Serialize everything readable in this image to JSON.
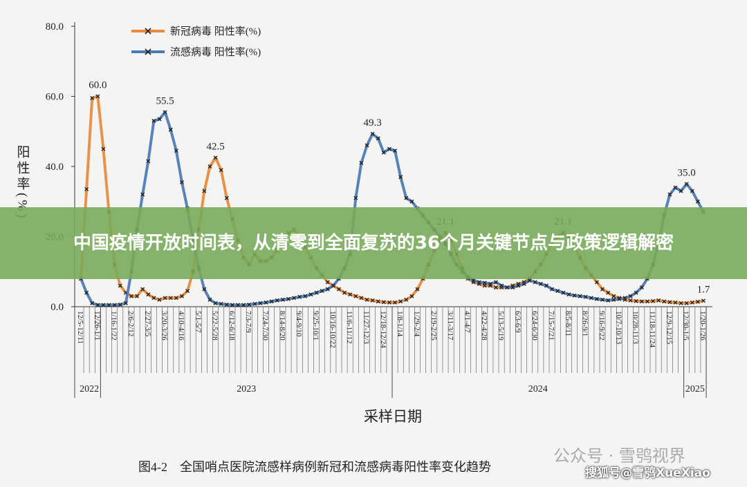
{
  "chart_data": {
    "type": "line",
    "caption": "图4-2　全国哨点医院流感样病例新冠和流感病毒阳性率变化趋势",
    "y_label": "阳性率(%)",
    "x_label": "采样日期",
    "years": [
      "2022",
      "2023",
      "2024",
      "2025"
    ],
    "ylim": [
      0,
      80
    ],
    "yticks": [
      {
        "value": 0,
        "label": "0.0"
      },
      {
        "value": 20,
        "label": "20.0"
      },
      {
        "value": 40,
        "label": "40.0"
      },
      {
        "value": 60,
        "label": "60.0"
      },
      {
        "value": 80,
        "label": "80.0"
      }
    ],
    "categories": [
      "12/5-12/11",
      null,
      null,
      "12/26-1/1",
      null,
      null,
      "1/16-1/22",
      null,
      null,
      "2/6-2/12",
      null,
      null,
      "2/27-3/5",
      null,
      null,
      "3/20-3/26",
      null,
      null,
      "4/10-4/16",
      null,
      null,
      "5/1-5/7",
      null,
      null,
      "5/22-5/28",
      null,
      null,
      "6/12-6/18",
      null,
      null,
      "7/3-7/9",
      null,
      null,
      "7/24-7/30",
      null,
      null,
      "8/14-8/20",
      null,
      null,
      "9/4-9/10",
      null,
      null,
      "9/25-10/1",
      null,
      null,
      "10/16-10/22",
      null,
      null,
      "11/6-11/12",
      null,
      null,
      "11/27-12/3",
      null,
      null,
      "12/18-12/24",
      null,
      null,
      "1/8-1/14",
      null,
      null,
      "1/29-2/4",
      null,
      null,
      "2/19-2/25",
      null,
      null,
      "3/11-3/17",
      null,
      null,
      "4/1-4/7",
      null,
      null,
      "4/22-4/28",
      null,
      null,
      "5/13-5/19",
      null,
      null,
      "6/3-6/9",
      null,
      null,
      "6/24-6/30",
      null,
      null,
      "7/15-7/21",
      null,
      null,
      "8/5-8/11",
      null,
      null,
      "8/26-9/1",
      null,
      null,
      "9/16-9/22",
      null,
      null,
      "10/7-10/13",
      null,
      null,
      "10/28-11/3",
      null,
      null,
      "11/18-11/24",
      null,
      null,
      "12/9-12/15",
      null,
      null,
      "12/30-1/5",
      null,
      null,
      "1/20-1/26"
    ],
    "series": [
      {
        "name": "新冠病毒 阳性率(%)",
        "color": "#e8883a",
        "values": [
          8,
          33.5,
          59.5,
          60,
          45,
          27,
          12,
          6,
          4,
          3,
          3,
          5,
          3.5,
          2.5,
          2,
          2.5,
          2.5,
          2.5,
          3,
          4.5,
          10,
          22,
          33,
          40,
          42.5,
          39,
          31,
          25,
          19,
          14,
          12,
          15,
          13,
          13,
          14,
          16,
          19,
          21,
          22,
          20,
          17,
          14,
          11,
          9,
          7,
          6,
          5,
          4,
          3.5,
          3,
          2.5,
          2,
          1.8,
          1.5,
          1.3,
          1.2,
          1.2,
          1.5,
          2,
          3,
          5,
          8,
          12,
          16,
          19,
          21.1,
          19,
          15,
          11,
          8,
          7,
          6.5,
          6,
          6,
          5.5,
          5.5,
          5.5,
          6,
          6.5,
          7,
          8,
          10,
          12,
          15,
          18,
          20,
          21.1,
          20,
          17,
          14,
          11,
          9,
          7,
          5,
          4,
          3,
          2.5,
          2,
          1.8,
          1.6,
          1.5,
          1.5,
          1.6,
          1.8,
          1.5,
          1.3,
          1.2,
          1,
          1,
          1.2,
          1.4,
          1.7
        ],
        "value_labels": [
          null,
          null,
          null,
          "60.0",
          null,
          null,
          null,
          null,
          null,
          null,
          null,
          null,
          null,
          null,
          null,
          null,
          null,
          null,
          null,
          null,
          null,
          null,
          null,
          null,
          "42.5",
          null,
          null,
          null,
          null,
          null,
          null,
          null,
          null,
          null,
          null,
          null,
          null,
          null,
          null,
          null,
          null,
          null,
          null,
          null,
          null,
          null,
          null,
          null,
          null,
          null,
          null,
          null,
          null,
          null,
          null,
          null,
          null,
          null,
          null,
          null,
          null,
          null,
          null,
          null,
          null,
          "21.1",
          null,
          null,
          null,
          null,
          null,
          null,
          null,
          null,
          null,
          null,
          null,
          null,
          null,
          null,
          null,
          null,
          null,
          null,
          null,
          null,
          "21.1",
          null,
          null,
          null,
          null,
          null,
          null,
          null,
          null,
          null,
          null,
          null,
          null,
          null,
          null,
          null,
          null,
          null,
          null,
          null,
          null,
          null,
          null,
          null,
          null,
          "1.7"
        ]
      },
      {
        "name": "流感病毒 阳性率(%)",
        "color": "#4a78b5",
        "values": [
          8,
          4,
          1,
          0.5,
          0.5,
          0.5,
          0.5,
          0.6,
          1,
          10,
          22,
          32,
          41.5,
          53,
          53.5,
          55.5,
          50.5,
          44.5,
          35.5,
          28,
          19,
          11,
          5,
          2,
          1,
          0.8,
          0.6,
          0.5,
          0.5,
          0.5,
          0.6,
          0.8,
          1,
          1.2,
          1.5,
          1.8,
          2,
          2.2,
          2.5,
          2.8,
          3,
          3.5,
          4,
          4.5,
          5,
          6,
          8,
          11,
          15,
          31,
          41,
          46,
          49.3,
          48,
          44,
          45,
          44.5,
          37,
          31,
          30,
          28,
          26,
          24,
          22,
          20,
          18,
          15,
          12,
          10,
          8.5,
          7.5,
          7,
          6.8,
          6.5,
          7,
          6,
          5.5,
          5.5,
          6,
          6.5,
          7.5,
          7,
          6.5,
          6,
          5,
          4.5,
          4,
          3.5,
          3.2,
          3,
          2.8,
          2.5,
          2.2,
          2,
          1.8,
          2,
          2.2,
          2.5,
          3,
          4,
          5.5,
          8,
          12,
          18,
          26,
          32,
          34,
          33,
          35,
          33,
          30,
          27
        ],
        "value_labels": [
          null,
          null,
          null,
          null,
          null,
          null,
          null,
          null,
          null,
          null,
          null,
          null,
          null,
          null,
          null,
          "55.5",
          null,
          null,
          null,
          null,
          null,
          null,
          null,
          null,
          null,
          null,
          null,
          null,
          null,
          null,
          null,
          null,
          null,
          null,
          null,
          null,
          null,
          null,
          null,
          null,
          null,
          null,
          null,
          null,
          null,
          null,
          null,
          null,
          null,
          null,
          null,
          null,
          "49.3",
          null,
          null,
          null,
          null,
          null,
          null,
          null,
          null,
          null,
          null,
          null,
          null,
          null,
          null,
          null,
          null,
          null,
          null,
          null,
          null,
          null,
          null,
          null,
          null,
          null,
          null,
          null,
          null,
          null,
          null,
          null,
          null,
          null,
          null,
          null,
          null,
          null,
          null,
          null,
          null,
          null,
          null,
          null,
          null,
          null,
          null,
          null,
          null,
          null,
          null,
          null,
          null,
          null,
          null,
          null,
          "35.0",
          null,
          null,
          null
        ]
      }
    ]
  },
  "overlay_title": "中国疫情开放时间表，从清零到全面复苏的36个月关键节点与政策逻辑解密",
  "watermarks": [
    "公众号 · 雪鸮视界",
    "搜狐号@雪鸮XueXiao"
  ]
}
